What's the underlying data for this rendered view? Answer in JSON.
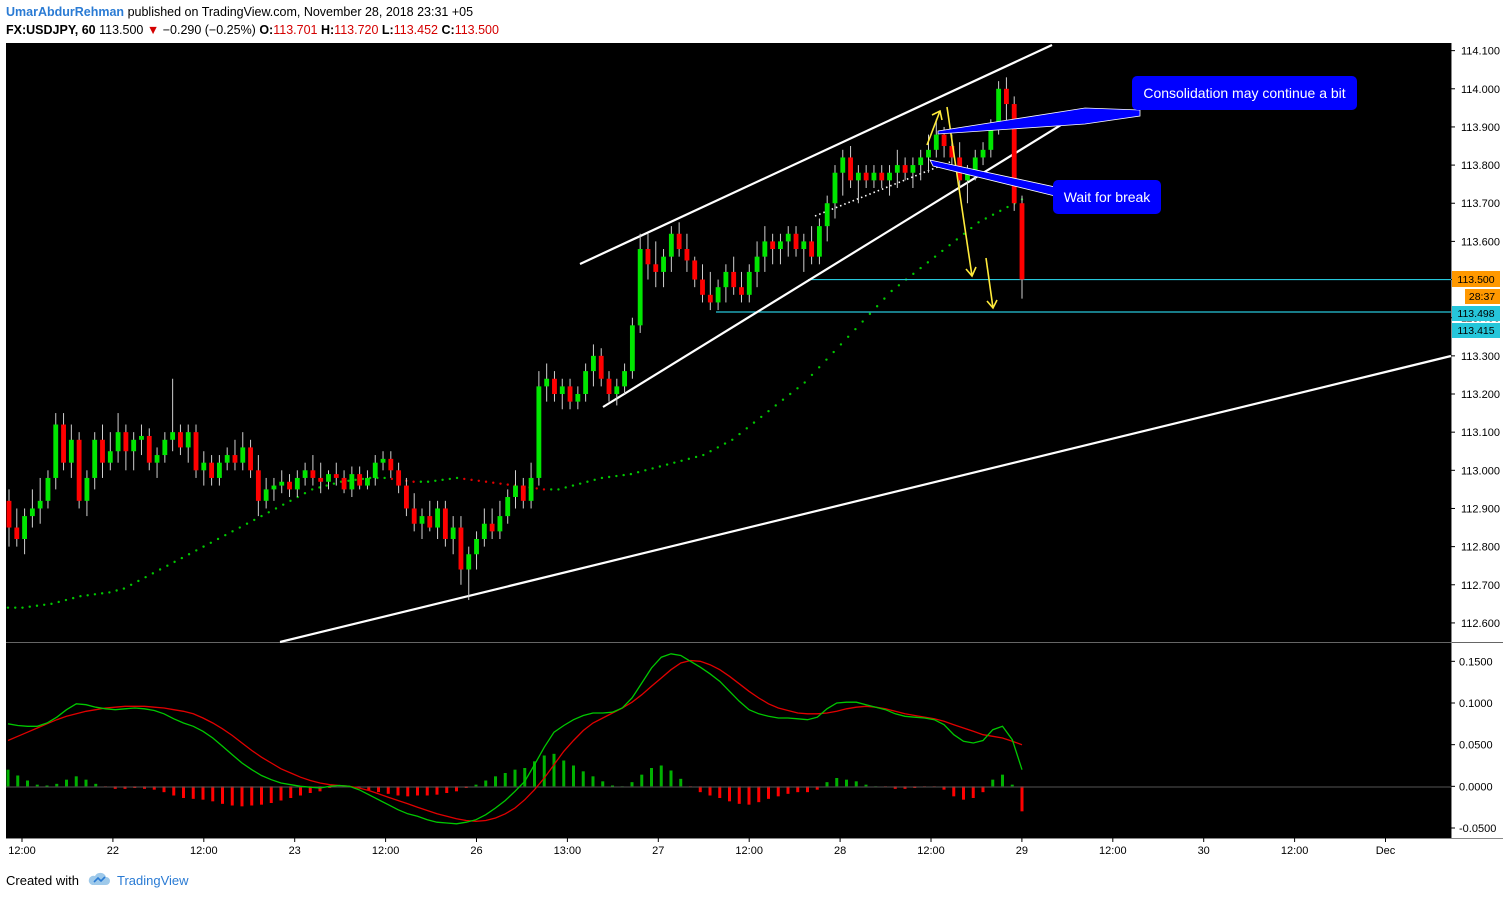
{
  "header": {
    "author": "UmarAbdurRehman",
    "published": "published on TradingView.com, November 28, 2018 23:31 +05",
    "symbol": "FX:USDJPY, 60",
    "last": "113.500",
    "change": "−0.290 (−0.25%)",
    "o_label": "O:",
    "o_value": "113.701",
    "h_label": "H:",
    "h_value": "113.720",
    "l_label": "L:",
    "l_value": "113.452",
    "c_label": "C:",
    "c_value": "113.500"
  },
  "footer": {
    "created_with": "Created with",
    "brand": "TradingView"
  },
  "colors": {
    "background": "#000000",
    "bull": "#00e600",
    "bear": "#ff0000",
    "sma_up": "#00c800",
    "sma_down": "#e00000",
    "trendline": "#ffffff",
    "level_line": "#26c6da",
    "arrow": "#ffeb3b",
    "callout": "#0000ff",
    "macd_line": "#00c800",
    "signal_line": "#e00000"
  },
  "annotations": [
    {
      "text": "Consolidation may continue a bit"
    },
    {
      "text": "Wait for break"
    }
  ],
  "price_tags": [
    {
      "text": "113.500",
      "kind": "last-price"
    },
    {
      "text": "28:37",
      "kind": "countdown"
    },
    {
      "text": "113.498",
      "kind": "level"
    },
    {
      "text": "113.415",
      "kind": "level"
    }
  ],
  "chart_data": {
    "type": "candlestick",
    "symbol": "FX:USDJPY",
    "interval": "60",
    "y_ticks": [
      "114.100",
      "114.000",
      "113.900",
      "113.800",
      "113.700",
      "113.600",
      "113.500",
      "113.400",
      "113.300",
      "113.200",
      "113.100",
      "113.000",
      "112.900",
      "112.800",
      "112.700",
      "112.600"
    ],
    "ylim": [
      112.55,
      114.12
    ],
    "x_ticks": [
      "12:00",
      "22",
      "12:00",
      "23",
      "12:00",
      "26",
      "13:00",
      "27",
      "12:00",
      "28",
      "12:00",
      "29",
      "12:00",
      "30",
      "12:00",
      "Dec"
    ],
    "horizontal_levels": [
      113.5,
      113.415
    ],
    "candles_ohlc": [
      [
        112.92,
        112.95,
        112.8,
        112.85
      ],
      [
        112.85,
        112.9,
        112.8,
        112.82
      ],
      [
        112.82,
        112.9,
        112.78,
        112.88
      ],
      [
        112.88,
        112.95,
        112.85,
        112.9
      ],
      [
        112.9,
        112.98,
        112.86,
        112.92
      ],
      [
        112.92,
        113.0,
        112.9,
        112.98
      ],
      [
        112.98,
        113.15,
        112.95,
        113.12
      ],
      [
        113.12,
        113.15,
        113.0,
        113.02
      ],
      [
        113.02,
        113.12,
        112.98,
        113.08
      ],
      [
        113.08,
        113.1,
        112.9,
        112.92
      ],
      [
        112.92,
        113.0,
        112.88,
        112.98
      ],
      [
        112.98,
        113.1,
        112.95,
        113.08
      ],
      [
        113.08,
        113.12,
        112.98,
        113.02
      ],
      [
        113.02,
        113.1,
        113.0,
        113.05
      ],
      [
        113.05,
        113.15,
        113.02,
        113.1
      ],
      [
        113.1,
        113.12,
        113.0,
        113.05
      ],
      [
        113.05,
        113.1,
        113.0,
        113.08
      ],
      [
        113.08,
        113.12,
        113.04,
        113.09
      ],
      [
        113.09,
        113.11,
        113.0,
        113.02
      ],
      [
        113.02,
        113.06,
        112.98,
        113.04
      ],
      [
        113.04,
        113.1,
        113.02,
        113.08
      ],
      [
        113.08,
        113.24,
        113.05,
        113.1
      ],
      [
        113.1,
        113.12,
        113.04,
        113.06
      ],
      [
        113.06,
        113.12,
        113.02,
        113.1
      ],
      [
        113.1,
        113.12,
        112.98,
        113.0
      ],
      [
        113.0,
        113.05,
        112.96,
        113.02
      ],
      [
        113.02,
        113.04,
        112.96,
        112.98
      ],
      [
        112.98,
        113.04,
        112.96,
        113.02
      ],
      [
        113.02,
        113.06,
        113.0,
        113.04
      ],
      [
        113.04,
        113.08,
        113.0,
        113.02
      ],
      [
        113.02,
        113.1,
        113.0,
        113.06
      ],
      [
        113.06,
        113.08,
        112.98,
        113.0
      ],
      [
        113.0,
        113.04,
        112.88,
        112.92
      ],
      [
        112.92,
        112.98,
        112.9,
        112.95
      ],
      [
        112.95,
        112.98,
        112.92,
        112.96
      ],
      [
        112.96,
        113.0,
        112.94,
        112.97
      ],
      [
        112.97,
        112.99,
        112.93,
        112.95
      ],
      [
        112.95,
        113.0,
        112.93,
        112.98
      ],
      [
        112.98,
        113.02,
        112.96,
        113.0
      ],
      [
        113.0,
        113.04,
        112.96,
        112.98
      ],
      [
        112.98,
        113.02,
        112.94,
        112.97
      ],
      [
        112.97,
        113.0,
        112.95,
        112.99
      ],
      [
        112.99,
        113.02,
        112.96,
        112.98
      ],
      [
        112.98,
        113.0,
        112.94,
        112.95
      ],
      [
        112.95,
        113.01,
        112.93,
        112.99
      ],
      [
        112.99,
        113.01,
        112.95,
        112.96
      ],
      [
        112.96,
        113.0,
        112.95,
        112.98
      ],
      [
        112.98,
        113.04,
        112.96,
        113.02
      ],
      [
        113.02,
        113.05,
        113.0,
        113.03
      ],
      [
        113.03,
        113.05,
        112.98,
        113.0
      ],
      [
        113.0,
        113.02,
        112.94,
        112.96
      ],
      [
        112.96,
        112.98,
        112.88,
        112.9
      ],
      [
        112.9,
        112.94,
        112.84,
        112.86
      ],
      [
        112.86,
        112.9,
        112.82,
        112.88
      ],
      [
        112.88,
        112.92,
        112.84,
        112.85
      ],
      [
        112.85,
        112.92,
        112.82,
        112.9
      ],
      [
        112.9,
        112.92,
        112.8,
        112.82
      ],
      [
        112.82,
        112.88,
        112.78,
        112.85
      ],
      [
        112.85,
        112.88,
        112.7,
        112.74
      ],
      [
        112.74,
        112.8,
        112.66,
        112.78
      ],
      [
        112.78,
        112.84,
        112.74,
        112.82
      ],
      [
        112.82,
        112.9,
        112.8,
        112.86
      ],
      [
        112.86,
        112.9,
        112.82,
        112.84
      ],
      [
        112.84,
        112.92,
        112.82,
        112.88
      ],
      [
        112.88,
        112.95,
        112.86,
        112.93
      ],
      [
        112.93,
        113.0,
        112.9,
        112.96
      ],
      [
        112.96,
        112.98,
        112.9,
        112.92
      ],
      [
        112.92,
        113.02,
        112.9,
        112.98
      ],
      [
        112.98,
        113.26,
        112.96,
        113.22
      ],
      [
        113.22,
        113.28,
        113.18,
        113.24
      ],
      [
        113.24,
        113.26,
        113.18,
        113.2
      ],
      [
        113.2,
        113.24,
        113.16,
        113.22
      ],
      [
        113.22,
        113.24,
        113.16,
        113.18
      ],
      [
        113.18,
        113.22,
        113.16,
        113.2
      ],
      [
        113.2,
        113.28,
        113.18,
        113.26
      ],
      [
        113.26,
        113.33,
        113.22,
        113.3
      ],
      [
        113.3,
        113.32,
        113.22,
        113.24
      ],
      [
        113.24,
        113.26,
        113.18,
        113.2
      ],
      [
        113.2,
        113.24,
        113.17,
        113.22
      ],
      [
        113.22,
        113.28,
        113.2,
        113.26
      ],
      [
        113.26,
        113.4,
        113.24,
        113.38
      ],
      [
        113.38,
        113.62,
        113.36,
        113.58
      ],
      [
        113.58,
        113.62,
        113.5,
        113.54
      ],
      [
        113.54,
        113.6,
        113.48,
        113.52
      ],
      [
        113.52,
        113.58,
        113.48,
        113.56
      ],
      [
        113.56,
        113.64,
        113.52,
        113.62
      ],
      [
        113.62,
        113.65,
        113.56,
        113.58
      ],
      [
        113.58,
        113.62,
        113.52,
        113.55
      ],
      [
        113.55,
        113.56,
        113.48,
        113.5
      ],
      [
        113.5,
        113.54,
        113.44,
        113.46
      ],
      [
        113.46,
        113.52,
        113.42,
        113.44
      ],
      [
        113.44,
        113.5,
        113.42,
        113.48
      ],
      [
        113.48,
        113.54,
        113.44,
        113.52
      ],
      [
        113.52,
        113.56,
        113.46,
        113.48
      ],
      [
        113.48,
        113.52,
        113.44,
        113.46
      ],
      [
        113.46,
        113.54,
        113.44,
        113.52
      ],
      [
        113.52,
        113.6,
        113.48,
        113.56
      ],
      [
        113.56,
        113.64,
        113.52,
        113.6
      ],
      [
        113.6,
        113.62,
        113.54,
        113.58
      ],
      [
        113.58,
        113.62,
        113.54,
        113.6
      ],
      [
        113.6,
        113.64,
        113.56,
        113.62
      ],
      [
        113.62,
        113.64,
        113.56,
        113.58
      ],
      [
        113.58,
        113.62,
        113.52,
        113.6
      ],
      [
        113.6,
        113.64,
        113.54,
        113.56
      ],
      [
        113.56,
        113.66,
        113.54,
        113.64
      ],
      [
        113.64,
        113.72,
        113.6,
        113.7
      ],
      [
        113.7,
        113.8,
        113.66,
        113.78
      ],
      [
        113.78,
        113.84,
        113.72,
        113.82
      ],
      [
        113.82,
        113.85,
        113.74,
        113.76
      ],
      [
        113.76,
        113.8,
        113.7,
        113.78
      ],
      [
        113.78,
        113.8,
        113.74,
        113.76
      ],
      [
        113.76,
        113.8,
        113.74,
        113.78
      ],
      [
        113.78,
        113.8,
        113.74,
        113.76
      ],
      [
        113.76,
        113.8,
        113.72,
        113.78
      ],
      [
        113.78,
        113.84,
        113.74,
        113.8
      ],
      [
        113.8,
        113.82,
        113.76,
        113.78
      ],
      [
        113.78,
        113.82,
        113.74,
        113.8
      ],
      [
        113.8,
        113.84,
        113.76,
        113.82
      ],
      [
        113.82,
        113.88,
        113.78,
        113.84
      ],
      [
        113.84,
        113.92,
        113.82,
        113.88
      ],
      [
        113.88,
        113.9,
        113.82,
        113.85
      ],
      [
        113.85,
        113.88,
        113.8,
        113.82
      ],
      [
        113.82,
        113.86,
        113.74,
        113.76
      ],
      [
        113.76,
        113.8,
        113.7,
        113.78
      ],
      [
        113.78,
        113.84,
        113.76,
        113.82
      ],
      [
        113.82,
        113.86,
        113.8,
        113.84
      ],
      [
        113.84,
        113.92,
        113.82,
        113.9
      ],
      [
        113.9,
        114.02,
        113.88,
        114.0
      ],
      [
        114.0,
        114.03,
        113.9,
        113.96
      ],
      [
        113.96,
        113.98,
        113.68,
        113.7
      ],
      [
        113.7,
        113.72,
        113.45,
        113.5
      ]
    ],
    "sma": [
      112.64,
      112.64,
      112.645,
      112.65,
      112.66,
      112.67,
      112.675,
      112.68,
      112.69,
      112.71,
      112.73,
      112.75,
      112.77,
      112.79,
      112.81,
      112.83,
      112.85,
      112.87,
      112.89,
      112.91,
      112.93,
      112.95,
      112.96,
      112.97,
      112.975,
      112.98,
      112.98,
      112.975,
      112.97,
      112.97,
      112.975,
      112.98,
      112.975,
      112.97,
      112.965,
      112.96,
      112.955,
      112.95,
      112.95,
      112.96,
      112.97,
      112.98,
      112.985,
      112.99,
      113.0,
      113.01,
      113.02,
      113.03,
      113.04,
      113.06,
      113.08,
      113.11,
      113.14,
      113.17,
      113.2,
      113.23,
      113.27,
      113.31,
      113.35,
      113.39,
      113.43,
      113.47,
      113.5,
      113.53,
      113.56,
      113.59,
      113.62,
      113.65,
      113.67,
      113.69,
      113.71
    ],
    "macd": [
      0.075,
      0.073,
      0.072,
      0.072,
      0.076,
      0.083,
      0.092,
      0.099,
      0.098,
      0.095,
      0.093,
      0.092,
      0.093,
      0.094,
      0.093,
      0.091,
      0.087,
      0.081,
      0.076,
      0.072,
      0.066,
      0.058,
      0.048,
      0.038,
      0.028,
      0.02,
      0.013,
      0.008,
      0.004,
      0.002,
      0.0,
      -0.001,
      -0.002,
      0.0,
      0.001,
      0.0,
      -0.004,
      -0.01,
      -0.016,
      -0.022,
      -0.028,
      -0.033,
      -0.036,
      -0.04,
      -0.043,
      -0.044,
      -0.045,
      -0.043,
      -0.04,
      -0.034,
      -0.026,
      -0.017,
      -0.006,
      0.006,
      0.026,
      0.047,
      0.065,
      0.073,
      0.08,
      0.085,
      0.088,
      0.088,
      0.089,
      0.094,
      0.106,
      0.124,
      0.142,
      0.155,
      0.159,
      0.157,
      0.15,
      0.143,
      0.135,
      0.126,
      0.114,
      0.102,
      0.092,
      0.087,
      0.084,
      0.082,
      0.082,
      0.081,
      0.08,
      0.083,
      0.093,
      0.1,
      0.101,
      0.101,
      0.098,
      0.095,
      0.092,
      0.087,
      0.084,
      0.083,
      0.082,
      0.08,
      0.074,
      0.062,
      0.054,
      0.052,
      0.055,
      0.068,
      0.072,
      0.056,
      0.02
    ],
    "signal": [
      0.055,
      0.06,
      0.065,
      0.07,
      0.075,
      0.08,
      0.084,
      0.087,
      0.09,
      0.092,
      0.094,
      0.095,
      0.096,
      0.096,
      0.096,
      0.095,
      0.094,
      0.092,
      0.09,
      0.087,
      0.082,
      0.076,
      0.069,
      0.061,
      0.052,
      0.043,
      0.035,
      0.028,
      0.021,
      0.016,
      0.011,
      0.007,
      0.004,
      0.002,
      0.001,
      0.0,
      -0.002,
      -0.005,
      -0.009,
      -0.013,
      -0.017,
      -0.021,
      -0.025,
      -0.029,
      -0.033,
      -0.036,
      -0.039,
      -0.041,
      -0.042,
      -0.041,
      -0.038,
      -0.033,
      -0.026,
      -0.016,
      -0.004,
      0.01,
      0.026,
      0.042,
      0.055,
      0.067,
      0.076,
      0.082,
      0.088,
      0.094,
      0.101,
      0.11,
      0.12,
      0.13,
      0.14,
      0.148,
      0.151,
      0.15,
      0.146,
      0.14,
      0.132,
      0.123,
      0.114,
      0.106,
      0.099,
      0.094,
      0.091,
      0.088,
      0.087,
      0.087,
      0.088,
      0.09,
      0.093,
      0.095,
      0.096,
      0.095,
      0.093,
      0.09,
      0.087,
      0.085,
      0.083,
      0.081,
      0.078,
      0.074,
      0.07,
      0.066,
      0.062,
      0.06,
      0.058,
      0.054,
      0.05
    ],
    "macd_ticks": [
      "0.1500",
      "0.1000",
      "0.0500",
      "0.0000",
      "-0.0500"
    ],
    "macd_ylim": [
      -0.062,
      0.172
    ]
  }
}
